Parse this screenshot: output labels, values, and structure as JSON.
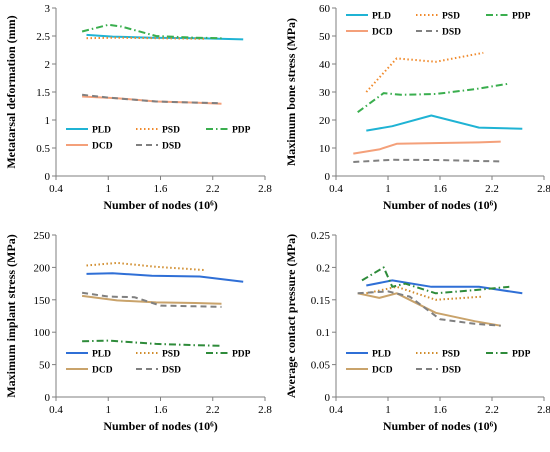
{
  "chart_data": [
    {
      "type": "line",
      "xlabel": "Number of nodes (10⁶)",
      "ylabel": "Metatarsal deformation (mm)",
      "xlim": [
        0.4,
        2.8
      ],
      "ylim": [
        0,
        3
      ],
      "xticks": [
        "0.4",
        "1",
        "1.6",
        "2.2",
        "2.8"
      ],
      "xtick_values": [
        0.4,
        1.0,
        1.6,
        2.2,
        2.8
      ],
      "yticks": [
        "0",
        "0.5",
        "1",
        "1.5",
        "2",
        "2.5",
        "3"
      ],
      "ytick_values": [
        0,
        0.5,
        1,
        1.5,
        2,
        2.5,
        3
      ],
      "legend_position": "bottom",
      "series": [
        {
          "name": "PLD",
          "color": "#1fb3d4",
          "dash": "solid",
          "x": [
            0.75,
            1.05,
            1.5,
            2.05,
            2.55
          ],
          "y": [
            2.52,
            2.49,
            2.47,
            2.46,
            2.44
          ]
        },
        {
          "name": "PSD",
          "color": "#f08a2c",
          "dash": "dot",
          "x": [
            0.75,
            1.1,
            1.55,
            2.1
          ],
          "y": [
            2.46,
            2.47,
            2.46,
            2.45
          ]
        },
        {
          "name": "PDP",
          "color": "#3aae4e",
          "dash": "dashdot",
          "x": [
            0.7,
            1.0,
            1.15,
            1.55,
            2.0,
            2.3
          ],
          "y": [
            2.58,
            2.7,
            2.67,
            2.5,
            2.47,
            2.46
          ]
        },
        {
          "name": "DCD",
          "color": "#f4a07a",
          "dash": "solid",
          "x": [
            0.7,
            1.1,
            1.55,
            2.0,
            2.3
          ],
          "y": [
            1.42,
            1.39,
            1.33,
            1.31,
            1.29
          ]
        },
        {
          "name": "DSD",
          "color": "#808080",
          "dash": "dash",
          "x": [
            0.7,
            1.0,
            1.55,
            2.0,
            2.3
          ],
          "y": [
            1.45,
            1.4,
            1.33,
            1.31,
            1.3
          ]
        }
      ]
    },
    {
      "type": "line",
      "xlabel": "Number of nodes (10⁶)",
      "ylabel": "Maximum bone stress (MPa)",
      "xlim": [
        0.4,
        2.8
      ],
      "ylim": [
        0,
        60
      ],
      "xticks": [
        "0.4",
        "1",
        "1.6",
        "2.2",
        "2.8"
      ],
      "xtick_values": [
        0.4,
        1.0,
        1.6,
        2.2,
        2.8
      ],
      "yticks": [
        "0",
        "10",
        "20",
        "30",
        "40",
        "50",
        "60"
      ],
      "ytick_values": [
        0,
        10,
        20,
        30,
        40,
        50,
        60
      ],
      "legend_position": "top",
      "series": [
        {
          "name": "PLD",
          "color": "#1fb3d4",
          "dash": "solid",
          "x": [
            0.75,
            1.05,
            1.5,
            2.05,
            2.55
          ],
          "y": [
            16.2,
            17.8,
            21.6,
            17.3,
            16.9
          ]
        },
        {
          "name": "PSD",
          "color": "#f08a2c",
          "dash": "dot",
          "x": [
            0.75,
            1.1,
            1.55,
            2.1
          ],
          "y": [
            30.0,
            42.0,
            40.8,
            44.0
          ]
        },
        {
          "name": "PDP",
          "color": "#3aae4e",
          "dash": "dashdot",
          "x": [
            0.65,
            0.95,
            1.15,
            1.55,
            2.0,
            2.4
          ],
          "y": [
            22.8,
            29.6,
            29.0,
            29.3,
            31.0,
            33.0
          ]
        },
        {
          "name": "DCD",
          "color": "#f4a07a",
          "dash": "solid",
          "x": [
            0.6,
            0.9,
            1.1,
            1.6,
            2.05,
            2.3
          ],
          "y": [
            8.0,
            9.5,
            11.5,
            11.8,
            12.0,
            12.3
          ]
        },
        {
          "name": "DSD",
          "color": "#808080",
          "dash": "dash",
          "x": [
            0.6,
            1.05,
            1.55,
            2.0,
            2.3
          ],
          "y": [
            5.0,
            5.8,
            5.7,
            5.4,
            5.2
          ]
        }
      ]
    },
    {
      "type": "line",
      "xlabel": "Number of nodes (10⁶)",
      "ylabel": "Maximum implant stress (MPa)",
      "xlim": [
        0.4,
        2.8
      ],
      "ylim": [
        0,
        250
      ],
      "xticks": [
        "0.4",
        "1",
        "1.6",
        "2.2",
        "2.8"
      ],
      "xtick_values": [
        0.4,
        1.0,
        1.6,
        2.2,
        2.8
      ],
      "yticks": [
        "0",
        "50",
        "100",
        "150",
        "200",
        "250"
      ],
      "ytick_values": [
        0,
        50,
        100,
        150,
        200,
        250
      ],
      "legend_position": "bottom",
      "series": [
        {
          "name": "PLD",
          "color": "#2f6fd6",
          "dash": "solid",
          "x": [
            0.75,
            1.05,
            1.5,
            2.05,
            2.55
          ],
          "y": [
            190,
            191,
            187,
            186,
            178
          ]
        },
        {
          "name": "PSD",
          "color": "#d08c2c",
          "dash": "dot",
          "x": [
            0.75,
            1.1,
            1.55,
            2.1
          ],
          "y": [
            203,
            207,
            201,
            196
          ]
        },
        {
          "name": "PDP",
          "color": "#2e8b3a",
          "dash": "dashdot",
          "x": [
            0.7,
            1.0,
            1.55,
            2.0,
            2.3
          ],
          "y": [
            86,
            87,
            82,
            80,
            79
          ]
        },
        {
          "name": "DCD",
          "color": "#c9a36b",
          "dash": "solid",
          "x": [
            0.7,
            1.1,
            1.55,
            2.0,
            2.3
          ],
          "y": [
            156,
            149,
            146,
            145,
            144
          ]
        },
        {
          "name": "DSD",
          "color": "#808080",
          "dash": "dash",
          "x": [
            0.7,
            1.0,
            1.3,
            1.6,
            2.0,
            2.3
          ],
          "y": [
            161,
            155,
            154,
            141,
            140,
            139
          ]
        }
      ]
    },
    {
      "type": "line",
      "xlabel": "Number of nodes (10⁶)",
      "ylabel": "Average contact pressure (MPa)",
      "xlim": [
        0.4,
        2.8
      ],
      "ylim": [
        0,
        0.25
      ],
      "xticks": [
        "0.4",
        "1",
        "1.6",
        "2.2",
        "2.8"
      ],
      "xtick_values": [
        0.4,
        1.0,
        1.6,
        2.2,
        2.8
      ],
      "yticks": [
        "0",
        "0.05",
        "0.1",
        "0.15",
        "0.2",
        "0.25"
      ],
      "ytick_values": [
        0,
        0.05,
        0.1,
        0.15,
        0.2,
        0.25
      ],
      "legend_position": "bottom",
      "series": [
        {
          "name": "PLD",
          "color": "#2f6fd6",
          "dash": "solid",
          "x": [
            0.75,
            1.05,
            1.5,
            2.05,
            2.55
          ],
          "y": [
            0.172,
            0.18,
            0.17,
            0.17,
            0.16
          ]
        },
        {
          "name": "PSD",
          "color": "#d08c2c",
          "dash": "dot",
          "x": [
            0.75,
            1.1,
            1.55,
            2.1
          ],
          "y": [
            0.16,
            0.17,
            0.15,
            0.155
          ]
        },
        {
          "name": "PDP",
          "color": "#2e8b3a",
          "dash": "dashdot",
          "x": [
            0.7,
            0.95,
            1.05,
            1.2,
            1.55,
            2.0,
            2.4
          ],
          "y": [
            0.18,
            0.2,
            0.17,
            0.175,
            0.16,
            0.165,
            0.17
          ]
        },
        {
          "name": "DCD",
          "color": "#c9a36b",
          "dash": "solid",
          "x": [
            0.65,
            0.9,
            1.1,
            1.55,
            2.0,
            2.3
          ],
          "y": [
            0.16,
            0.153,
            0.16,
            0.13,
            0.117,
            0.11
          ]
        },
        {
          "name": "DSD",
          "color": "#808080",
          "dash": "dash",
          "x": [
            0.65,
            1.0,
            1.25,
            1.6,
            2.0,
            2.3
          ],
          "y": [
            0.16,
            0.163,
            0.155,
            0.12,
            0.113,
            0.11
          ]
        }
      ]
    }
  ]
}
